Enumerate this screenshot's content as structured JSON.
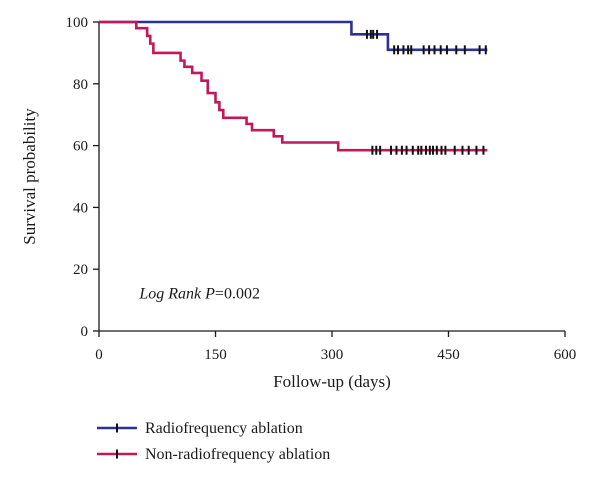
{
  "chart_data": {
    "type": "line",
    "subtype": "kaplan-meier",
    "xlabel": "Follow-up (days)",
    "ylabel": "Survival probability",
    "xlim": [
      0,
      600
    ],
    "ylim": [
      0,
      100
    ],
    "xticks": [
      "0",
      "150",
      "300",
      "450",
      "600"
    ],
    "yticks": [
      "0",
      "20",
      "40",
      "60",
      "80",
      "100"
    ],
    "annotation": {
      "italic": "Log Rank P",
      "text": "=0.002"
    },
    "legend_placement": "bottom-left",
    "grid": false,
    "series": [
      {
        "name": "Radiofrequency ablation",
        "color": "#2e3192",
        "steps": [
          [
            0,
            100
          ],
          [
            325,
            96
          ],
          [
            372,
            91
          ]
        ],
        "end_x": 500,
        "censored": [
          [
            345,
            96
          ],
          [
            350,
            96
          ],
          [
            353,
            96
          ],
          [
            358,
            96
          ],
          [
            380,
            91
          ],
          [
            385,
            91
          ],
          [
            392,
            91
          ],
          [
            398,
            91
          ],
          [
            402,
            91
          ],
          [
            418,
            91
          ],
          [
            425,
            91
          ],
          [
            432,
            91
          ],
          [
            440,
            91
          ],
          [
            448,
            91
          ],
          [
            460,
            91
          ],
          [
            471,
            91
          ],
          [
            490,
            91
          ],
          [
            498,
            91
          ]
        ]
      },
      {
        "name": "Non-radiofrequency ablation",
        "color": "#c2185b",
        "steps": [
          [
            0,
            100
          ],
          [
            48,
            98
          ],
          [
            62,
            95.5
          ],
          [
            66,
            93
          ],
          [
            70,
            90
          ],
          [
            105,
            87.5
          ],
          [
            110,
            85.5
          ],
          [
            120,
            83.5
          ],
          [
            132,
            81
          ],
          [
            140,
            77
          ],
          [
            150,
            74
          ],
          [
            155,
            71.5
          ],
          [
            160,
            69
          ],
          [
            190,
            67
          ],
          [
            197,
            65
          ],
          [
            225,
            63
          ],
          [
            236,
            61
          ],
          [
            308,
            58.5
          ]
        ],
        "end_x": 500,
        "censored": [
          [
            352,
            58.5
          ],
          [
            357,
            58.5
          ],
          [
            362,
            58.5
          ],
          [
            376,
            58.5
          ],
          [
            383,
            58.5
          ],
          [
            390,
            58.5
          ],
          [
            396,
            58.5
          ],
          [
            404,
            58.5
          ],
          [
            411,
            58.5
          ],
          [
            415,
            58.5
          ],
          [
            421,
            58.5
          ],
          [
            426,
            58.5
          ],
          [
            430,
            58.5
          ],
          [
            435,
            58.5
          ],
          [
            441,
            58.5
          ],
          [
            446,
            58.5
          ],
          [
            458,
            58.5
          ],
          [
            468,
            58.5
          ],
          [
            476,
            58.5
          ],
          [
            486,
            58.5
          ],
          [
            495,
            58.5
          ]
        ]
      }
    ]
  }
}
